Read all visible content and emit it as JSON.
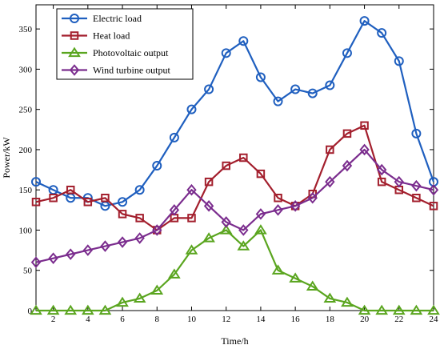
{
  "chart_data": {
    "type": "line",
    "title": "",
    "xlabel": "Time/h",
    "ylabel": "Power/kW",
    "xlim": [
      1,
      24
    ],
    "ylim": [
      0,
      380
    ],
    "xticks": [
      2,
      4,
      6,
      8,
      10,
      12,
      14,
      16,
      18,
      20,
      22,
      24
    ],
    "yticks": [
      0,
      50,
      100,
      150,
      200,
      250,
      300,
      350
    ],
    "grid": false,
    "legend_position": "top-left",
    "x": [
      1,
      2,
      3,
      4,
      5,
      6,
      7,
      8,
      9,
      10,
      11,
      12,
      13,
      14,
      15,
      16,
      17,
      18,
      19,
      20,
      21,
      22,
      23,
      24
    ],
    "series": [
      {
        "name": "Electric load",
        "color": "#1f5fbf",
        "marker": "circle",
        "values": [
          160,
          150,
          140,
          140,
          130,
          135,
          150,
          180,
          215,
          250,
          275,
          320,
          335,
          290,
          260,
          275,
          270,
          280,
          320,
          360,
          345,
          310,
          220,
          160
        ]
      },
      {
        "name": "Heat load",
        "color": "#a31f2d",
        "marker": "square",
        "values": [
          135,
          140,
          150,
          135,
          140,
          120,
          115,
          100,
          115,
          115,
          160,
          180,
          190,
          170,
          140,
          130,
          145,
          200,
          220,
          230,
          160,
          150,
          140,
          130
        ]
      },
      {
        "name": "Photovoltaic output",
        "color": "#5aa51f",
        "marker": "triangle",
        "values": [
          0,
          0,
          0,
          0,
          0,
          10,
          15,
          25,
          45,
          75,
          90,
          100,
          80,
          100,
          50,
          40,
          30,
          15,
          10,
          0,
          0,
          0,
          0,
          0
        ]
      },
      {
        "name": "Wind turbine output",
        "color": "#7b2d8e",
        "marker": "diamond",
        "values": [
          60,
          65,
          70,
          75,
          80,
          85,
          90,
          100,
          125,
          150,
          130,
          110,
          100,
          120,
          125,
          130,
          140,
          160,
          180,
          200,
          175,
          160,
          155,
          150
        ]
      }
    ]
  }
}
